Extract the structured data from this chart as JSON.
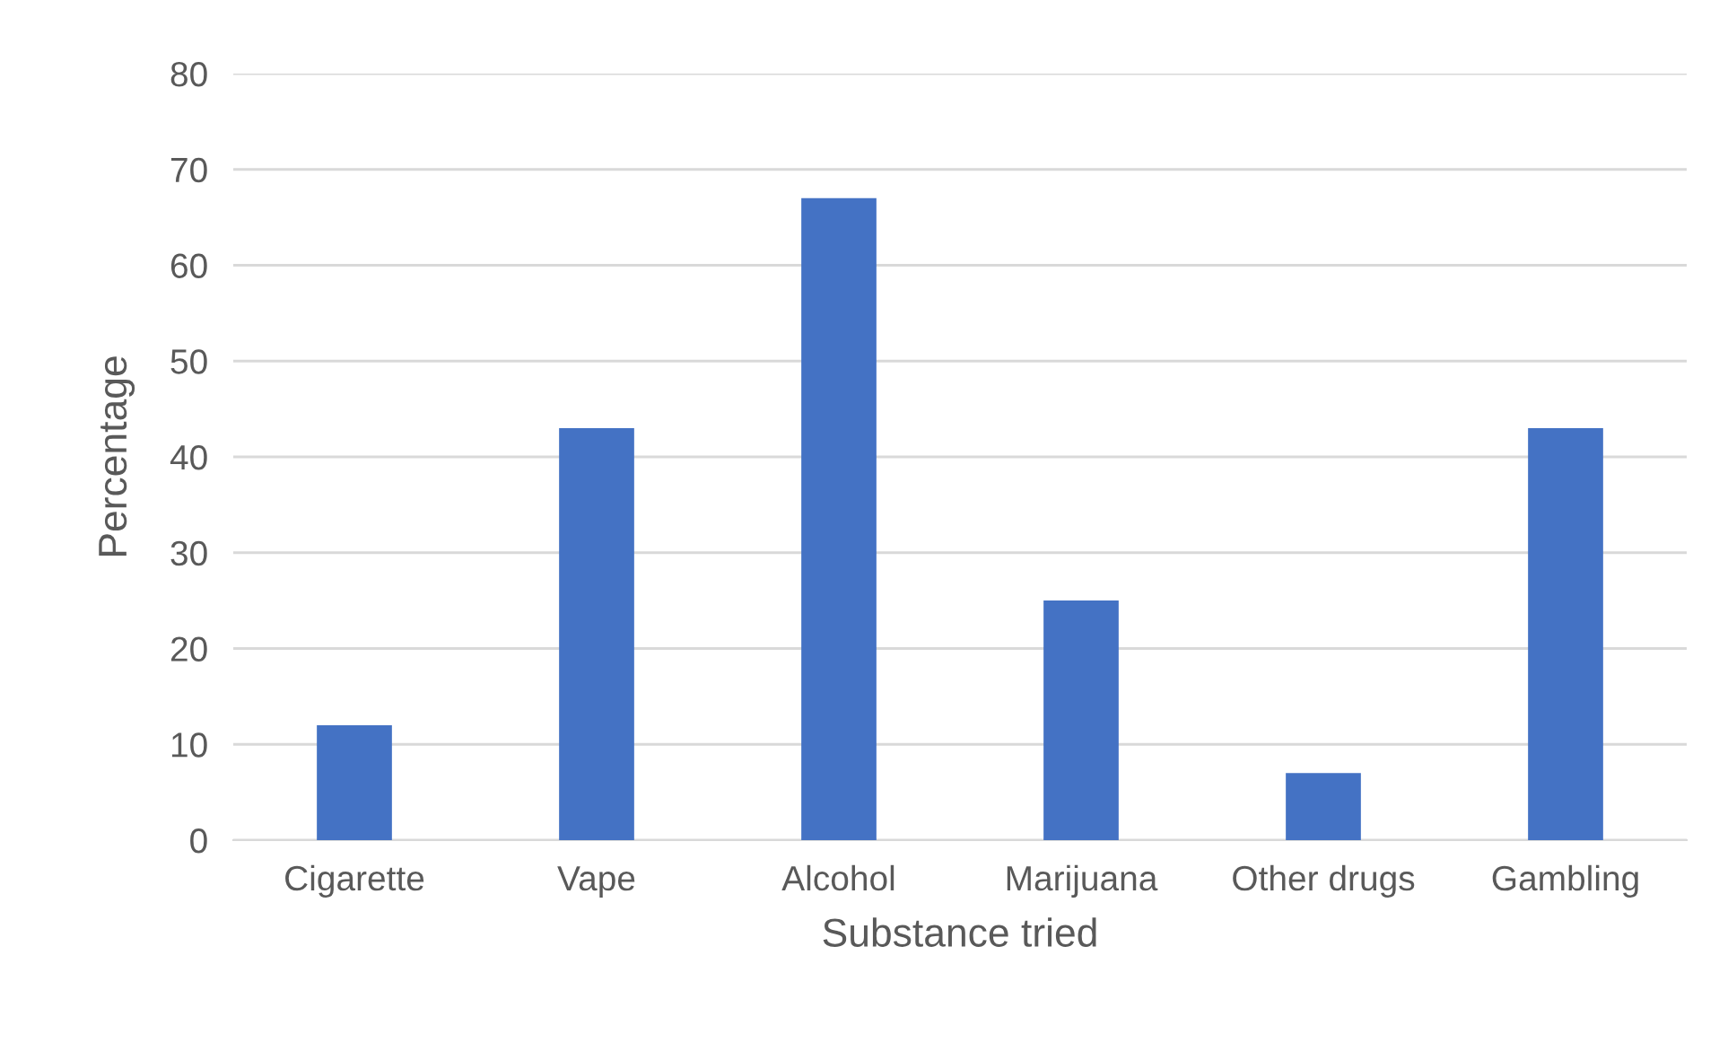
{
  "chart_data": {
    "type": "bar",
    "xlabel": "Substance tried",
    "ylabel": "Percentage",
    "categories": [
      "Cigarette",
      "Vape",
      "Alcohol",
      "Marijuana",
      "Other drugs",
      "Gambling"
    ],
    "values": [
      12,
      43,
      67,
      25,
      7,
      43
    ],
    "color": "#4472c4",
    "ylim": [
      0,
      80
    ],
    "yticks": [
      0,
      10,
      20,
      30,
      40,
      50,
      60,
      70,
      80
    ],
    "grid": "y",
    "legend": false
  }
}
